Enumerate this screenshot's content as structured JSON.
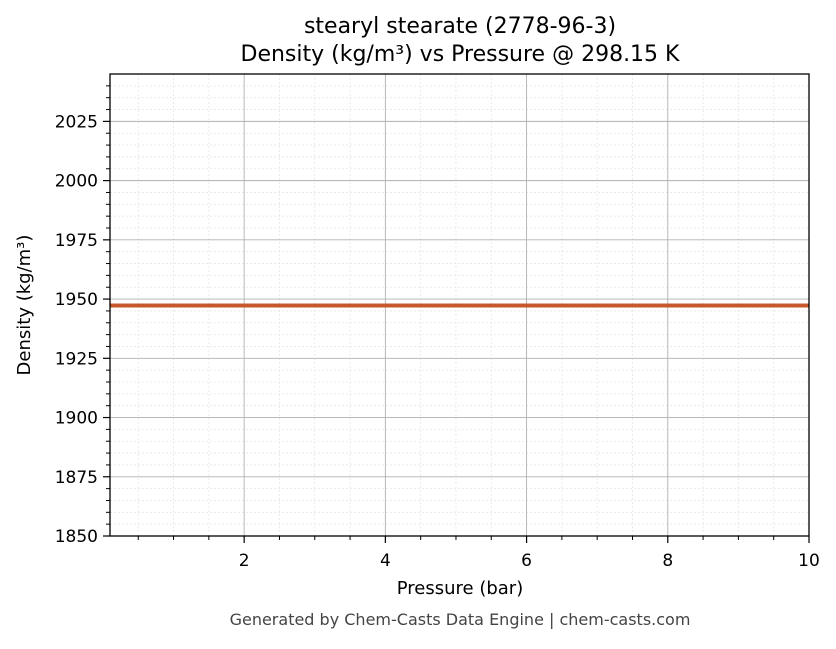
{
  "chart_data": {
    "type": "line",
    "title_line1": "stearyl stearate (2778-96-3)",
    "title_line2": "Density (kg/m³) vs Pressure @ 298.15 K",
    "xlabel": "Pressure (bar)",
    "ylabel": "Density (kg/m³)",
    "xlim": [
      0.1,
      10
    ],
    "ylim": [
      1850,
      2045
    ],
    "x_ticks": [
      2,
      4,
      6,
      8,
      10
    ],
    "y_ticks": [
      1850,
      1875,
      1900,
      1925,
      1950,
      1975,
      2000,
      2025
    ],
    "grid": true,
    "minor_grid": true,
    "series": [
      {
        "color": "#c8582a",
        "x": [
          0.1,
          1,
          2,
          3,
          4,
          5,
          6,
          7,
          8,
          9,
          10
        ],
        "y": [
          1947.3,
          1947.3,
          1947.3,
          1947.3,
          1947.3,
          1947.3,
          1947.3,
          1947.3,
          1947.3,
          1947.3,
          1947.3
        ]
      }
    ]
  },
  "footer": "Generated by Chem-Casts Data Engine | chem-casts.com"
}
